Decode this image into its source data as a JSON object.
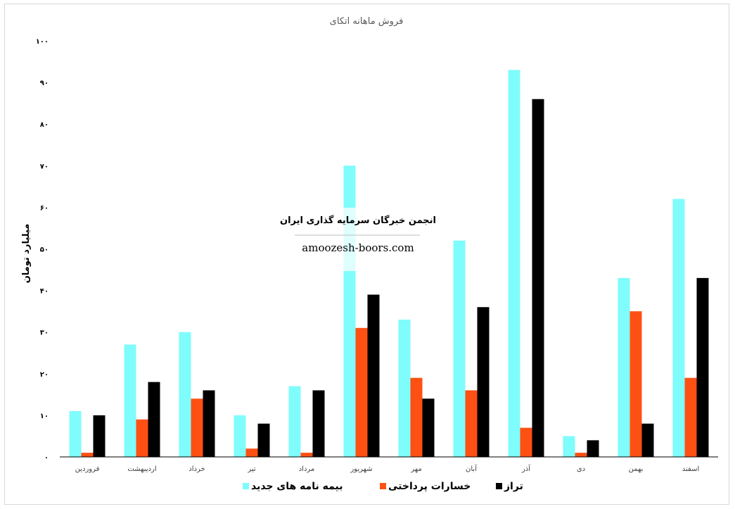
{
  "chart_data": {
    "type": "bar",
    "title": "فروش ماهانه اتکای",
    "ylabel": "میلیارد تومان",
    "ylim": [
      0,
      100
    ],
    "y_ticks": [
      "۰",
      "۱۰",
      "۲۰",
      "۳۰",
      "۴۰",
      "۵۰",
      "۶۰",
      "۷۰",
      "۸۰",
      "۹۰",
      "۱۰۰"
    ],
    "categories": [
      "فروردین",
      "اردیبهشت",
      "خرداد",
      "تیر",
      "مرداد",
      "شهریور",
      "مهر",
      "آبان",
      "آذر",
      "دی",
      "بهمن",
      "اسفند"
    ],
    "series": [
      {
        "name": "بیمه نامه های جدید",
        "color": "#7ffcfc",
        "values": [
          11,
          27,
          30,
          10,
          17,
          70,
          33,
          52,
          93,
          5,
          43,
          62
        ]
      },
      {
        "name": "خسارات پرداختی",
        "color": "#ff5014",
        "values": [
          1,
          9,
          14,
          2,
          1,
          31,
          19,
          16,
          7,
          1,
          35,
          19
        ]
      },
      {
        "name": "تراز",
        "color": "#000000",
        "values": [
          10,
          18,
          16,
          8,
          16,
          39,
          14,
          36,
          86,
          4,
          8,
          43
        ]
      }
    ],
    "legend_position": "bottom",
    "grid": false
  },
  "watermark": {
    "title": "انجمن خبرگان سرمایه گذاری ایران",
    "url": "amoozesh-boors.com"
  }
}
